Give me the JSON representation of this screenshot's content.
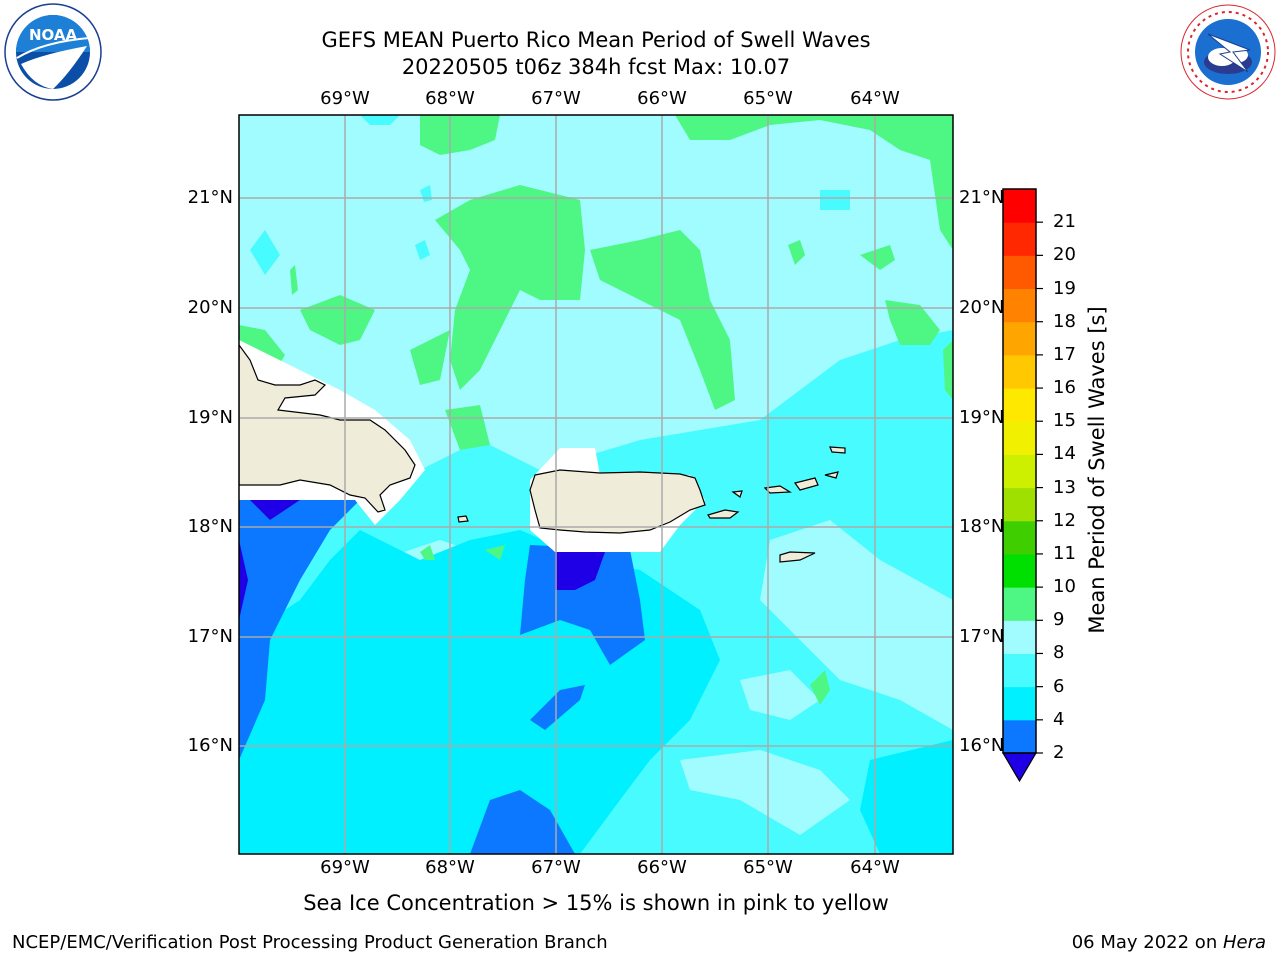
{
  "title": {
    "line1": "GEFS MEAN Puerto Rico Mean Period of Swell Waves",
    "line2": "20220505 t06z 384h fcst   Max: 10.07"
  },
  "map": {
    "lon_labels": [
      "69°W",
      "68°W",
      "67°W",
      "66°W",
      "65°W",
      "64°W"
    ],
    "lat_labels": [
      "21°N",
      "20°N",
      "19°N",
      "18°N",
      "17°N",
      "16°N"
    ],
    "colors": {
      "c2_4": "#0b78ff",
      "c4_6": "#00f0ff",
      "c6_8": "#48fbff",
      "c8_9": "#a1fcff",
      "c9_10": "#4ef784",
      "below2": "#1f00e6",
      "land": "#efedd9",
      "mask": "#ffffff",
      "grid": "#aaaaaa"
    }
  },
  "colorbar": {
    "label": "Mean Period of Swell Waves [s]",
    "ticks": [
      "21",
      "20",
      "19",
      "18",
      "17",
      "16",
      "15",
      "14",
      "13",
      "12",
      "11",
      "10",
      "9",
      "8",
      "6",
      "4",
      "2"
    ],
    "colors": [
      "#0b78ff",
      "#00f0ff",
      "#48fbff",
      "#a1fcff",
      "#4ef784",
      "#00e000",
      "#3fcf00",
      "#9fe000",
      "#cdf000",
      "#f0f000",
      "#ffe800",
      "#ffc800",
      "#ffa500",
      "#ff8200",
      "#ff5a00",
      "#ff2800",
      "#ff0000"
    ],
    "under_color": "#1f00e6"
  },
  "sea_ice_note": "Sea Ice Concentration > 15% is shown in pink to yellow",
  "footer": {
    "left": "NCEP/EMC/Verification Post Processing Product Generation Branch",
    "date": "06 May 2022 on ",
    "machine": "Hera"
  },
  "logos": {
    "noaa_text": "NOAA",
    "nws_text": "NATIONAL WEATHER SERVICE"
  }
}
